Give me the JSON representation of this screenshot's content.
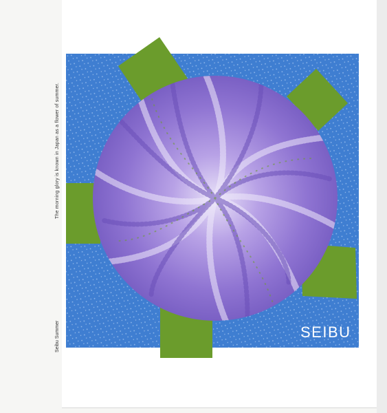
{
  "poster": {
    "caption": "The morning glory is known in Japan as a flower of summer.",
    "series_title": "Seibu Summer",
    "logo_text": "SEIBU"
  },
  "colors": {
    "sky_blue": "#3e7fd0",
    "leaf_green": "#6a9a2e",
    "petal_light": "#c9b7ee",
    "petal_dark": "#7a5ec4"
  }
}
